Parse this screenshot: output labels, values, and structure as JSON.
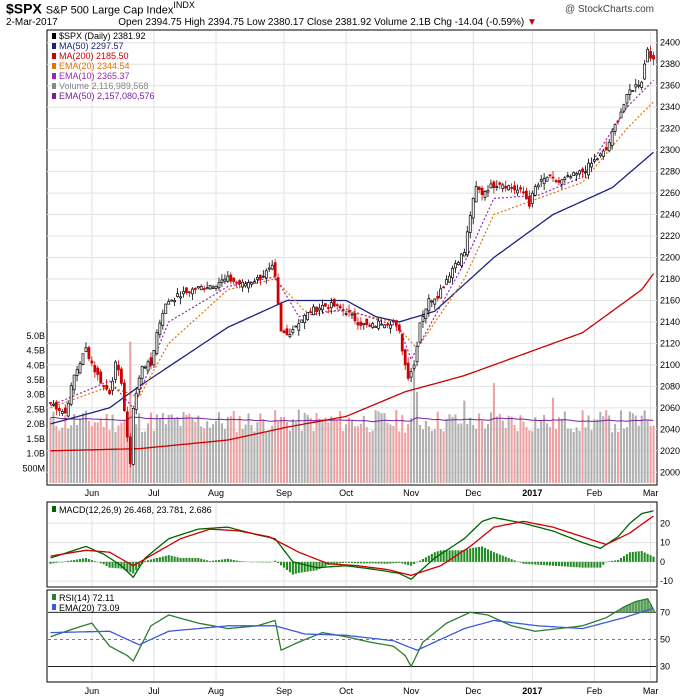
{
  "header": {
    "ticker": "$SPX",
    "name": "S&P 500 Large Cap Index",
    "exchange": "INDX",
    "date": "2-Mar-2017",
    "open_label": "Open",
    "open": "2394.75",
    "high_label": "High",
    "high": "2394.75",
    "low_label": "Low",
    "low": "2380.17",
    "close_label": "Close",
    "close": "2381.92",
    "volume_label": "Volume",
    "volume": "2.1B",
    "chg_label": "Chg",
    "chg": "-14.04 (-0.59%)",
    "copyright": "@ StockCharts.com"
  },
  "colors": {
    "price_up": "#000000",
    "price_down": "#cc0000",
    "ma50": "#1a237e",
    "ma200": "#cc0000",
    "ema20": "#e67300",
    "ema10": "#9c27b0",
    "volume_up": "#b0b0b0",
    "volume_down": "#f0a0a0",
    "ema50_volume": "#7b1fa2",
    "macd": "#006400",
    "macd_signal": "#cc0000",
    "macd_hist": "#228b22",
    "rsi": "#1a237e",
    "rsi_ema": "#3b5bdb"
  },
  "chart_data": [
    {
      "type": "line",
      "panel": "price",
      "legend": [
        {
          "label": "$SPX (Daily) 2381.92",
          "key": "price"
        },
        {
          "label": "MA(50) 2297.57",
          "key": "ma50"
        },
        {
          "label": "MA(200) 2185.50",
          "key": "ma200"
        },
        {
          "label": "EMA(20) 2344.54",
          "key": "ema20"
        },
        {
          "label": "EMA(10) 2365.37",
          "key": "ema10"
        },
        {
          "label": "Volume 2,116,989,568",
          "key": "volume"
        },
        {
          "label": "EMA(50) 2,157,080,576",
          "key": "ema50vol"
        }
      ],
      "ylim": [
        1990,
        2410
      ],
      "y_ticks": [
        2000,
        2020,
        2040,
        2060,
        2080,
        2100,
        2120,
        2140,
        2160,
        2180,
        2200,
        2220,
        2240,
        2260,
        2280,
        2300,
        2320,
        2340,
        2360,
        2380,
        2400
      ],
      "volume_ticks": [
        "500M",
        "1.0B",
        "1.5B",
        "2.0B",
        "2.5B",
        "3.0B",
        "3.5B",
        "4.0B",
        "4.5B",
        "5.0B"
      ],
      "volume_ylim": [
        0,
        5.2
      ],
      "x_ticks": [
        {
          "label": "Jun",
          "day": 14
        },
        {
          "label": "Jul",
          "day": 35
        },
        {
          "label": "Aug",
          "day": 56
        },
        {
          "label": "Sep",
          "day": 79
        },
        {
          "label": "Oct",
          "day": 100
        },
        {
          "label": "Nov",
          "day": 122
        },
        {
          "label": "Dec",
          "day": 143
        },
        {
          "label": "2017",
          "day": 163
        },
        {
          "label": "Feb",
          "day": 184
        },
        {
          "label": "Mar",
          "day": 203
        }
      ],
      "x_count": 205,
      "close_anchors": [
        [
          0,
          2065
        ],
        [
          5,
          2055
        ],
        [
          8,
          2090
        ],
        [
          12,
          2115
        ],
        [
          15,
          2095
        ],
        [
          18,
          2080
        ],
        [
          20,
          2075
        ],
        [
          22,
          2100
        ],
        [
          24,
          2085
        ],
        [
          26,
          2030
        ],
        [
          27,
          2010
        ],
        [
          28,
          2060
        ],
        [
          31,
          2100
        ],
        [
          34,
          2100
        ],
        [
          36,
          2130
        ],
        [
          38,
          2150
        ],
        [
          40,
          2160
        ],
        [
          44,
          2165
        ],
        [
          48,
          2170
        ],
        [
          55,
          2175
        ],
        [
          60,
          2180
        ],
        [
          65,
          2175
        ],
        [
          70,
          2180
        ],
        [
          75,
          2190
        ],
        [
          76,
          2180
        ],
        [
          78,
          2130
        ],
        [
          80,
          2128
        ],
        [
          84,
          2140
        ],
        [
          88,
          2150
        ],
        [
          92,
          2155
        ],
        [
          96,
          2155
        ],
        [
          100,
          2150
        ],
        [
          104,
          2140
        ],
        [
          108,
          2135
        ],
        [
          112,
          2140
        ],
        [
          116,
          2140
        ],
        [
          118,
          2130
        ],
        [
          120,
          2100
        ],
        [
          121,
          2090
        ],
        [
          123,
          2100
        ],
        [
          125,
          2140
        ],
        [
          128,
          2160
        ],
        [
          131,
          2165
        ],
        [
          134,
          2180
        ],
        [
          137,
          2195
        ],
        [
          140,
          2205
        ],
        [
          142,
          2240
        ],
        [
          144,
          2265
        ],
        [
          146,
          2260
        ],
        [
          148,
          2265
        ],
        [
          152,
          2270
        ],
        [
          156,
          2265
        ],
        [
          160,
          2260
        ],
        [
          162,
          2250
        ],
        [
          164,
          2265
        ],
        [
          168,
          2275
        ],
        [
          172,
          2270
        ],
        [
          176,
          2275
        ],
        [
          180,
          2280
        ],
        [
          184,
          2290
        ],
        [
          188,
          2300
        ],
        [
          192,
          2330
        ],
        [
          196,
          2355
        ],
        [
          200,
          2365
        ],
        [
          202,
          2395
        ],
        [
          204,
          2382
        ]
      ],
      "ma50_anchors": [
        [
          0,
          2045
        ],
        [
          20,
          2060
        ],
        [
          30,
          2080
        ],
        [
          60,
          2135
        ],
        [
          80,
          2160
        ],
        [
          100,
          2160
        ],
        [
          110,
          2145
        ],
        [
          118,
          2140
        ],
        [
          130,
          2150
        ],
        [
          150,
          2200
        ],
        [
          170,
          2240
        ],
        [
          190,
          2265
        ],
        [
          204,
          2298
        ]
      ],
      "ma200_anchors": [
        [
          0,
          2020
        ],
        [
          30,
          2022
        ],
        [
          60,
          2030
        ],
        [
          80,
          2042
        ],
        [
          100,
          2052
        ],
        [
          120,
          2075
        ],
        [
          140,
          2090
        ],
        [
          160,
          2110
        ],
        [
          180,
          2130
        ],
        [
          200,
          2170
        ],
        [
          204,
          2185
        ]
      ],
      "ema20_anchors": [
        [
          0,
          2060
        ],
        [
          20,
          2080
        ],
        [
          30,
          2070
        ],
        [
          40,
          2120
        ],
        [
          60,
          2170
        ],
        [
          76,
          2180
        ],
        [
          86,
          2150
        ],
        [
          100,
          2150
        ],
        [
          116,
          2140
        ],
        [
          124,
          2115
        ],
        [
          140,
          2180
        ],
        [
          150,
          2240
        ],
        [
          165,
          2255
        ],
        [
          180,
          2270
        ],
        [
          195,
          2320
        ],
        [
          204,
          2345
        ]
      ],
      "ema10_anchors": [
        [
          0,
          2062
        ],
        [
          20,
          2085
        ],
        [
          28,
          2060
        ],
        [
          40,
          2140
        ],
        [
          60,
          2173
        ],
        [
          76,
          2182
        ],
        [
          84,
          2145
        ],
        [
          100,
          2152
        ],
        [
          118,
          2135
        ],
        [
          122,
          2105
        ],
        [
          140,
          2195
        ],
        [
          150,
          2255
        ],
        [
          165,
          2258
        ],
        [
          180,
          2275
        ],
        [
          195,
          2340
        ],
        [
          204,
          2365
        ]
      ]
    },
    {
      "type": "line",
      "panel": "macd",
      "title": "MACD(12,26,9)",
      "legend_values": "26.468, 23.781, 2.686",
      "ylim": [
        -12,
        30
      ],
      "y_ticks": [
        -10,
        0,
        10,
        20
      ],
      "macd_anchors": [
        [
          0,
          2
        ],
        [
          12,
          8
        ],
        [
          18,
          4
        ],
        [
          24,
          -2
        ],
        [
          28,
          -8
        ],
        [
          32,
          2
        ],
        [
          40,
          12
        ],
        [
          50,
          17
        ],
        [
          60,
          18
        ],
        [
          70,
          14
        ],
        [
          76,
          12
        ],
        [
          82,
          0
        ],
        [
          90,
          -3
        ],
        [
          100,
          -2
        ],
        [
          110,
          -4
        ],
        [
          118,
          -6
        ],
        [
          122,
          -9
        ],
        [
          130,
          2
        ],
        [
          140,
          12
        ],
        [
          146,
          21
        ],
        [
          150,
          23
        ],
        [
          160,
          20
        ],
        [
          170,
          16
        ],
        [
          180,
          10
        ],
        [
          186,
          7
        ],
        [
          192,
          13
        ],
        [
          196,
          20
        ],
        [
          200,
          25
        ],
        [
          204,
          26.5
        ]
      ],
      "signal_anchors": [
        [
          0,
          3
        ],
        [
          12,
          6
        ],
        [
          20,
          5
        ],
        [
          28,
          -2
        ],
        [
          36,
          5
        ],
        [
          44,
          12
        ],
        [
          54,
          17
        ],
        [
          64,
          16
        ],
        [
          74,
          13
        ],
        [
          84,
          5
        ],
        [
          94,
          -1
        ],
        [
          104,
          -2
        ],
        [
          114,
          -4
        ],
        [
          122,
          -7
        ],
        [
          132,
          -2
        ],
        [
          142,
          8
        ],
        [
          150,
          18
        ],
        [
          160,
          21
        ],
        [
          170,
          18
        ],
        [
          180,
          13
        ],
        [
          188,
          9
        ],
        [
          196,
          15
        ],
        [
          204,
          23.8
        ]
      ]
    },
    {
      "type": "line",
      "panel": "rsi",
      "title": "RSI(14) 72.11",
      "ema_legend": "EMA(20) 73.09",
      "ylim": [
        20,
        85
      ],
      "y_ticks": [
        30,
        50,
        70
      ],
      "overbought": 70,
      "oversold": 30,
      "rsi_anchors": [
        [
          0,
          52
        ],
        [
          8,
          58
        ],
        [
          14,
          62
        ],
        [
          20,
          45
        ],
        [
          26,
          38
        ],
        [
          28,
          34
        ],
        [
          34,
          60
        ],
        [
          40,
          68
        ],
        [
          50,
          62
        ],
        [
          60,
          58
        ],
        [
          70,
          60
        ],
        [
          76,
          64
        ],
        [
          78,
          42
        ],
        [
          84,
          48
        ],
        [
          92,
          55
        ],
        [
          100,
          52
        ],
        [
          108,
          48
        ],
        [
          116,
          45
        ],
        [
          120,
          38
        ],
        [
          122,
          30
        ],
        [
          126,
          48
        ],
        [
          134,
          62
        ],
        [
          142,
          70
        ],
        [
          148,
          68
        ],
        [
          156,
          60
        ],
        [
          164,
          56
        ],
        [
          172,
          58
        ],
        [
          180,
          60
        ],
        [
          188,
          66
        ],
        [
          194,
          74
        ],
        [
          198,
          78
        ],
        [
          202,
          80
        ],
        [
          204,
          72
        ]
      ],
      "ema_anchors": [
        [
          0,
          55
        ],
        [
          20,
          56
        ],
        [
          30,
          46
        ],
        [
          40,
          56
        ],
        [
          60,
          60
        ],
        [
          76,
          60
        ],
        [
          86,
          54
        ],
        [
          100,
          53
        ],
        [
          116,
          49
        ],
        [
          124,
          42
        ],
        [
          140,
          58
        ],
        [
          150,
          64
        ],
        [
          165,
          60
        ],
        [
          180,
          58
        ],
        [
          194,
          66
        ],
        [
          204,
          73
        ]
      ]
    }
  ]
}
